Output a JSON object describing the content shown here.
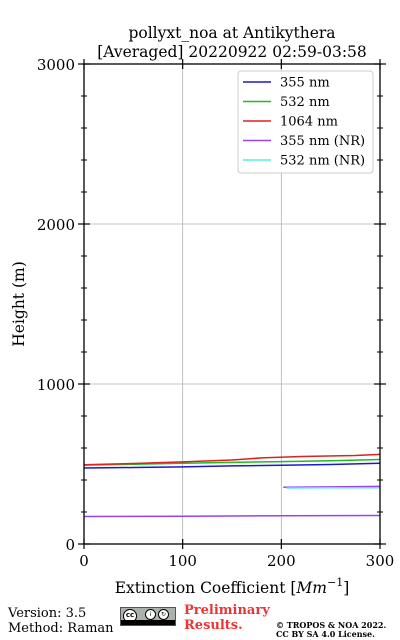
{
  "chart_data": {
    "type": "line",
    "title_line1": "pollyxt_noa at Antikythera",
    "title_line2": "[Averaged] 20220922 02:59-03:58",
    "xlabel": "Extinction Coefficient [",
    "xlabel_unit": "Mm",
    "xlabel_exp": "−1",
    "xlabel_end": "]",
    "ylabel": "Height (m)",
    "xlim": [
      0,
      300
    ],
    "ylim": [
      0,
      3000
    ],
    "x_ticks": [
      0,
      100,
      200,
      300
    ],
    "x_tick_labels": [
      "0",
      "100",
      "200",
      "300"
    ],
    "y_ticks": [
      0,
      1000,
      2000,
      3000
    ],
    "y_tick_labels": [
      "0",
      "1000",
      "2000",
      "3000"
    ],
    "grid": true,
    "legend_position": "top-right",
    "series": [
      {
        "name": "355 nm",
        "color": "#1a1acc",
        "points": [
          [
            0,
            475
          ],
          [
            50,
            478
          ],
          [
            100,
            482
          ],
          [
            150,
            488
          ],
          [
            200,
            492
          ],
          [
            250,
            497
          ],
          [
            300,
            505
          ]
        ]
      },
      {
        "name": "532 nm",
        "color": "#22bb22",
        "points": [
          [
            0,
            493
          ],
          [
            50,
            498
          ],
          [
            100,
            505
          ],
          [
            150,
            510
          ],
          [
            200,
            515
          ],
          [
            250,
            520
          ],
          [
            300,
            528
          ]
        ]
      },
      {
        "name": "1064 nm",
        "color": "#dd2222",
        "points": [
          [
            0,
            495
          ],
          [
            50,
            503
          ],
          [
            100,
            513
          ],
          [
            150,
            525
          ],
          [
            180,
            538
          ],
          [
            220,
            547
          ],
          [
            275,
            553
          ],
          [
            300,
            560
          ]
        ]
      },
      {
        "name": "355 nm (NR)",
        "color": "#9944ee",
        "points": [
          [
            0,
            172
          ],
          [
            100,
            174
          ],
          [
            200,
            176
          ],
          [
            300,
            178
          ]
        ],
        "extra_points": [
          [
            202,
            355
          ],
          [
            250,
            357
          ],
          [
            300,
            360
          ]
        ]
      },
      {
        "name": "532 nm (NR)",
        "color": "#55eedd",
        "points": [
          [
            205,
            350
          ],
          [
            250,
            351
          ],
          [
            300,
            352
          ]
        ]
      }
    ]
  },
  "footer": {
    "version": "Version: 3.5",
    "method": "Method: Raman",
    "prelim_line1": "Preliminary",
    "prelim_line2": "Results.",
    "copyright_line1": "© TROPOS & NOA 2022.",
    "copyright_line2": "CC BY SA 4.0 License.",
    "license_badge": {
      "main": "cc",
      "by": "BY",
      "sa": "SA"
    }
  }
}
